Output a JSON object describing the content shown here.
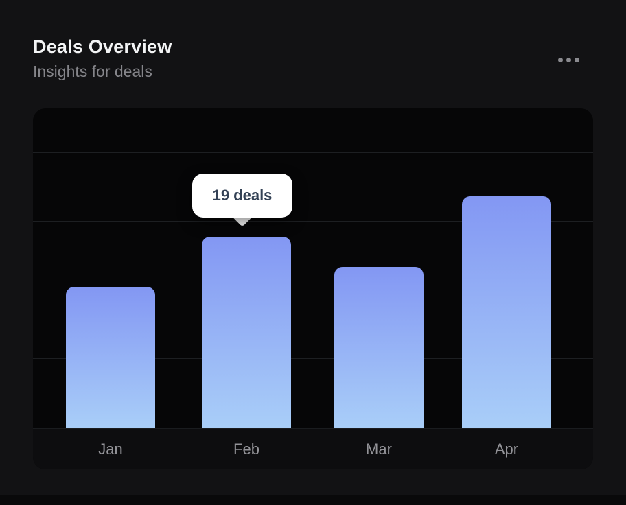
{
  "header": {
    "title": "Deals Overview",
    "subtitle": "Insights for deals",
    "menu_icon": "ellipsis-horizontal"
  },
  "chart_data": {
    "type": "bar",
    "title": "Deals Overview",
    "subtitle": "Insights for deals",
    "categories": [
      "Jan",
      "Feb",
      "Mar",
      "Apr"
    ],
    "values": [
      14,
      19,
      16,
      23
    ],
    "series_name": "deals",
    "xlabel": "",
    "ylabel": "",
    "ylim": [
      0,
      31
    ],
    "y_axis_labels_visible": false,
    "gridlines": "horizontal",
    "legend": "none",
    "tooltip": {
      "category": "Feb",
      "value": 19,
      "label": "19 deals"
    },
    "colors": {
      "bar_gradient_top": "#8397f3",
      "bar_gradient_bottom": "#a9cef8",
      "plot_background": "#060607",
      "gridline": "#1d1f22",
      "axis_label": "#939398",
      "tooltip_background": "#ffffff",
      "tooltip_text": "#334155"
    }
  }
}
